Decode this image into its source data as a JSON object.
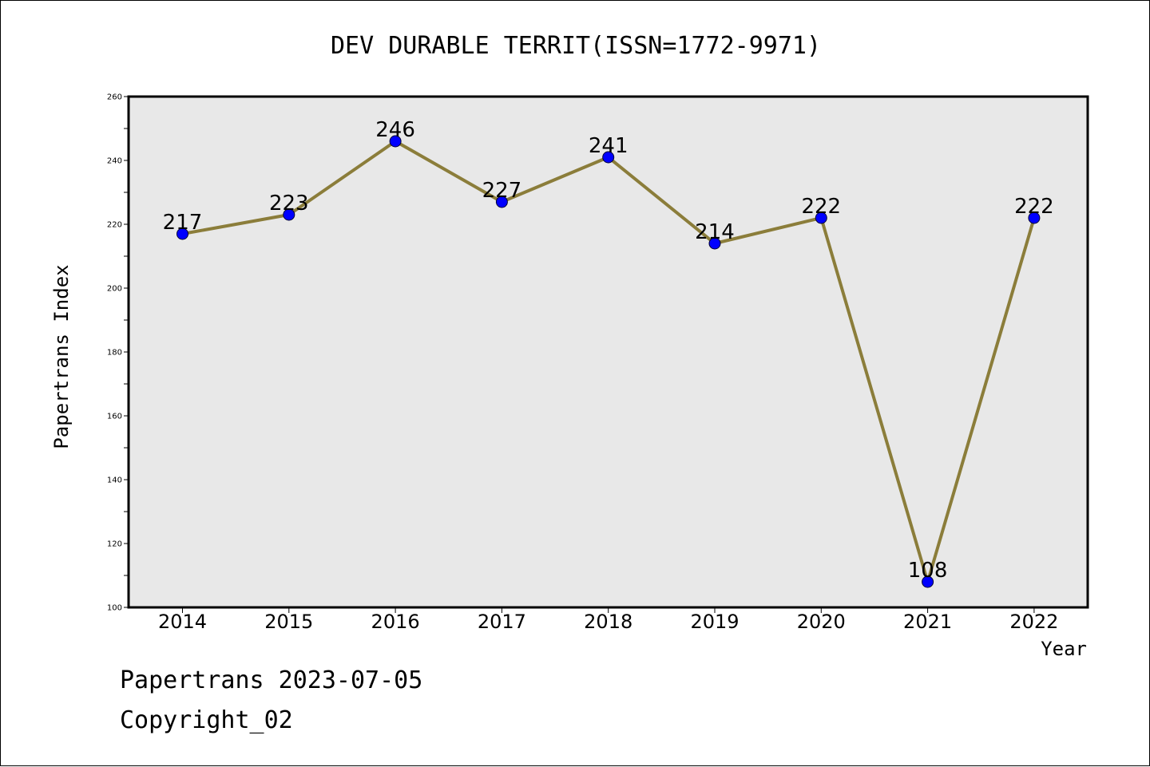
{
  "chart_data": {
    "type": "line",
    "title": "DEV DURABLE TERRIT(ISSN=1772-9971)",
    "xlabel": "Year",
    "ylabel": "Papertrans Index",
    "categories": [
      "2014",
      "2015",
      "2016",
      "2017",
      "2018",
      "2019",
      "2020",
      "2021",
      "2022"
    ],
    "series": [
      {
        "values": [
          217,
          223,
          246,
          227,
          241,
          214,
          222,
          108,
          222
        ]
      }
    ],
    "ylim": [
      100,
      260
    ],
    "yticks": [
      "100",
      "120",
      "140",
      "160",
      "180",
      "200",
      "220",
      "240",
      "260"
    ],
    "grid": false,
    "data_labels": true,
    "colors": {
      "line": "#8b7d3a",
      "marker": "#0000ff",
      "plot_background": "#e8e8e8"
    }
  },
  "footer": {
    "line1": "Papertrans 2023-07-05",
    "line2": "Copyright_02"
  }
}
